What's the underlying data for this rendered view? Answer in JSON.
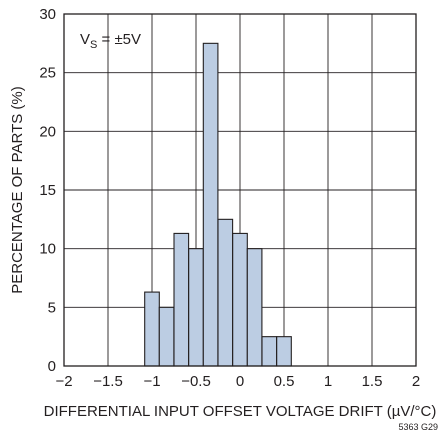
{
  "chart_data": {
    "type": "bar",
    "xlabel": "DIFFERENTIAL INPUT OFFSET VOLTAGE DRIFT (µV/°C)",
    "ylabel": "PERCENTAGE OF PARTS (%)",
    "xlim": [
      -2,
      2
    ],
    "ylim": [
      0,
      30
    ],
    "xticks": [
      "−2",
      "−1.5",
      "−1",
      "−0.5",
      "0",
      "0.5",
      "1",
      "1.5",
      "2"
    ],
    "yticks": [
      "0",
      "5",
      "10",
      "15",
      "20",
      "25",
      "30"
    ],
    "grid": true,
    "bin_width": 0.166,
    "bins": [
      {
        "start": -1.083,
        "value": 6.3
      },
      {
        "start": -0.917,
        "value": 5.0
      },
      {
        "start": -0.75,
        "value": 11.3
      },
      {
        "start": -0.583,
        "value": 10.0
      },
      {
        "start": -0.417,
        "value": 27.5
      },
      {
        "start": -0.25,
        "value": 12.5
      },
      {
        "start": -0.083,
        "value": 11.3
      },
      {
        "start": 0.083,
        "value": 10.0
      },
      {
        "start": 0.25,
        "value": 2.5
      },
      {
        "start": 0.417,
        "value": 2.5
      }
    ],
    "bar_color": "#bccde3",
    "annotation": {
      "main": "V",
      "sub": "S",
      "rest": " = ±5V"
    },
    "figure_code": "5363 G29"
  }
}
